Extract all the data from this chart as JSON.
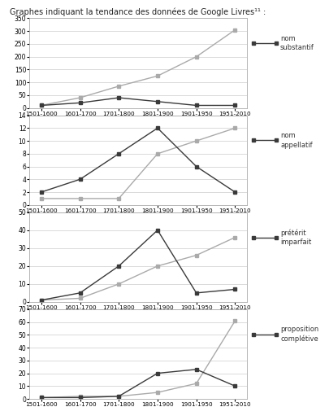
{
  "title": "Graphes indiquant la tendance des données de Google Livres¹¹ :",
  "x_labels": [
    "1501-1600",
    "1601-1700",
    "1701-1800",
    "1801-1900",
    "1901-1950",
    "1951-2010"
  ],
  "charts": [
    {
      "legend_label": "nom\nsubstantif",
      "dark_line": [
        10,
        20,
        40,
        25,
        10,
        10
      ],
      "light_line": [
        10,
        40,
        85,
        125,
        200,
        305
      ],
      "ylim": [
        0,
        350
      ],
      "yticks": [
        0,
        50,
        100,
        150,
        200,
        250,
        300,
        350
      ]
    },
    {
      "legend_label": "nom\nappellatif",
      "dark_line": [
        2,
        4,
        8,
        12,
        6,
        2
      ],
      "light_line": [
        1,
        1,
        1,
        8,
        10,
        12
      ],
      "ylim": [
        0,
        14
      ],
      "yticks": [
        0,
        2,
        4,
        6,
        8,
        10,
        12,
        14
      ]
    },
    {
      "legend_label": "prétérit\nimparfait",
      "dark_line": [
        1,
        5,
        20,
        40,
        5,
        7
      ],
      "light_line": [
        1,
        2,
        10,
        20,
        26,
        36
      ],
      "ylim": [
        0,
        50
      ],
      "yticks": [
        0,
        10,
        20,
        30,
        40,
        50
      ]
    },
    {
      "legend_label": "proposition\ncomplétive",
      "dark_line": [
        1,
        1,
        2,
        20,
        23,
        10
      ],
      "light_line": [
        1,
        2,
        2,
        5,
        12,
        61
      ],
      "ylim": [
        0,
        70
      ],
      "yticks": [
        0,
        10,
        20,
        30,
        40,
        50,
        60,
        70
      ]
    }
  ],
  "dark_color": "#3a3a3a",
  "light_color": "#aaaaaa",
  "marker": "s",
  "marker_size": 3.5,
  "line_width": 1.0,
  "background_color": "#ffffff"
}
